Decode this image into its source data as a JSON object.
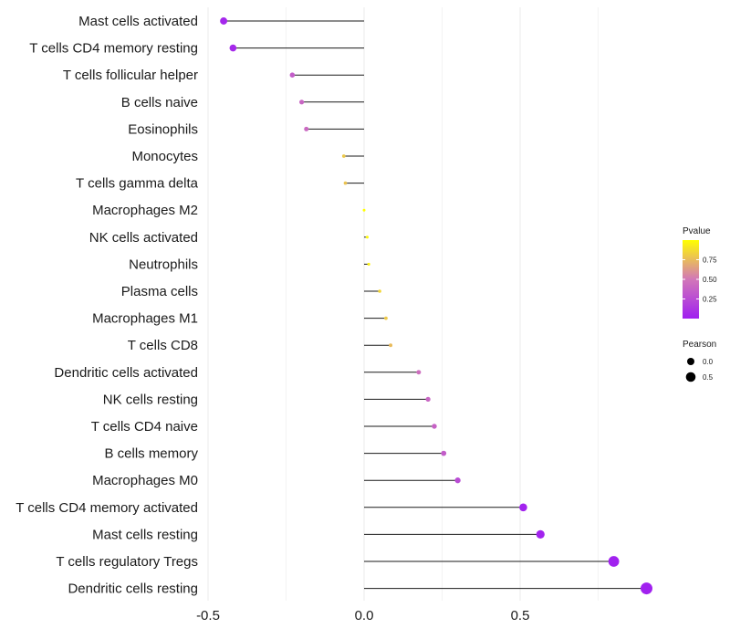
{
  "chart_data": {
    "type": "lollipop",
    "title": "",
    "xlabel": "",
    "ylabel": "",
    "xlim": [
      -0.5,
      0.95
    ],
    "x_ticks": [
      -0.5,
      0.0,
      0.5
    ],
    "x_tick_labels": [
      "-0.5",
      "0.0",
      "0.5"
    ],
    "categories": [
      "Mast cells activated",
      "T cells CD4 memory resting",
      "T cells follicular helper",
      "B cells naive",
      "Eosinophils",
      "Monocytes",
      "T cells gamma delta",
      "Macrophages M2",
      "NK cells activated",
      "Neutrophils",
      "Plasma cells",
      "Macrophages M1",
      "T cells CD8",
      "Dendritic cells activated",
      "NK cells resting",
      "T cells CD4 naive",
      "B cells memory",
      "Macrophages M0",
      "T cells CD4 memory activated",
      "Mast cells resting",
      "T cells regulatory  Tregs",
      "Dendritic cells resting"
    ],
    "pearson": [
      -0.45,
      -0.42,
      -0.23,
      -0.2,
      -0.185,
      -0.065,
      -0.06,
      0.0,
      0.01,
      0.015,
      0.05,
      0.07,
      0.085,
      0.175,
      0.205,
      0.225,
      0.255,
      0.3,
      0.51,
      0.565,
      0.8,
      0.905
    ],
    "pvalue": [
      0.04,
      0.05,
      0.35,
      0.4,
      0.42,
      0.8,
      0.78,
      1.0,
      0.97,
      0.95,
      0.85,
      0.8,
      0.75,
      0.45,
      0.4,
      0.38,
      0.35,
      0.25,
      0.02,
      0.02,
      0.01,
      0.005
    ],
    "legend_pvalue": {
      "title": "Pvalue",
      "ticks": [
        0.25,
        0.5,
        0.75
      ],
      "tick_labels": [
        "0.25",
        "0.50",
        "0.75"
      ],
      "color_low": "#a020f0",
      "color_mid": "#d277b8",
      "color_high": "#ffff00"
    },
    "legend_pearson": {
      "title": "Pearson",
      "entries": [
        {
          "label": "0.0",
          "value": 0.0
        },
        {
          "label": "0.5",
          "value": 0.5
        }
      ]
    },
    "grid": true,
    "legend_position": "right"
  }
}
